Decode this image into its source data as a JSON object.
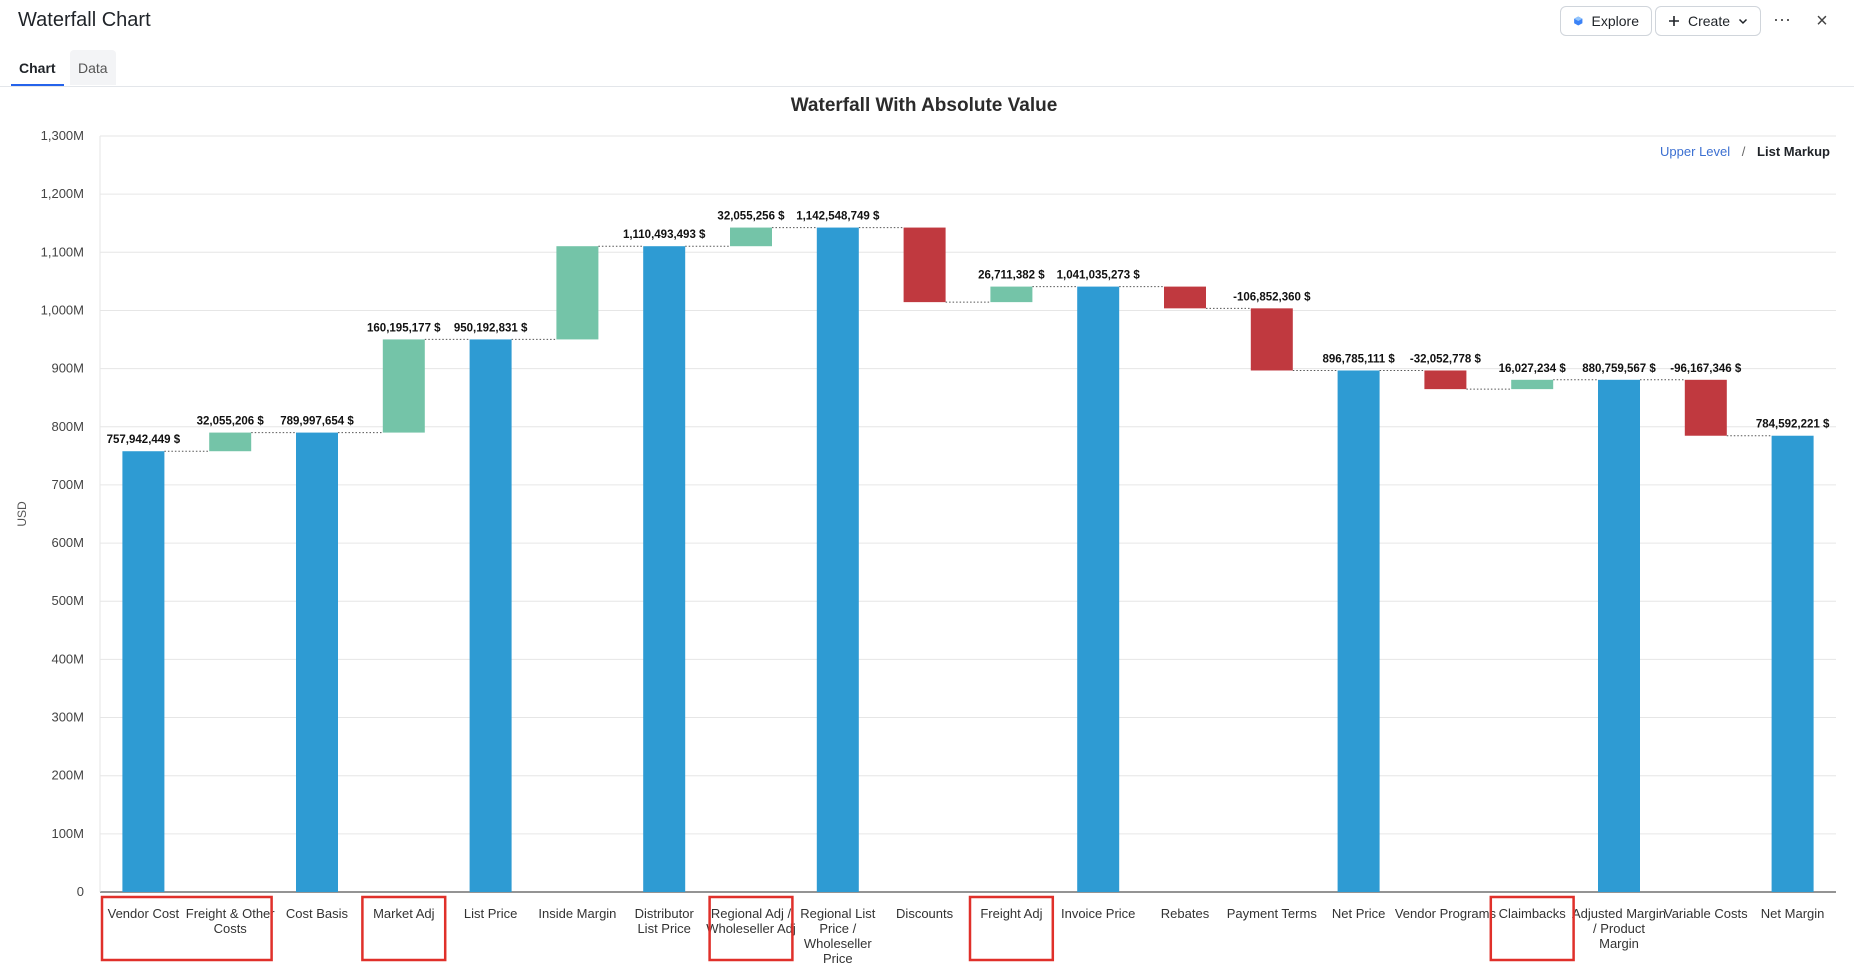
{
  "app": {
    "title": "Waterfall Chart"
  },
  "toolbar": {
    "explore_label": "Explore",
    "create_label": "Create",
    "more_label": "···",
    "close_label": "×"
  },
  "tabs": [
    {
      "label": "Chart",
      "active": true
    },
    {
      "label": "Data",
      "active": false
    }
  ],
  "breadcrumb": {
    "upper": "Upper Level",
    "separator": "/",
    "current": "List Markup"
  },
  "colors": {
    "total": "#2e9bd3",
    "increase": "#74c4a8",
    "decrease": "#c0393f",
    "highlight": "#e0302a",
    "brand": "#2563eb"
  },
  "chart_data": {
    "type": "waterfall",
    "title": "Waterfall With Absolute Value",
    "ylabel": "USD",
    "xlabel": "",
    "ylim": [
      0,
      1300000000
    ],
    "yticks": [
      0,
      100000000,
      200000000,
      300000000,
      400000000,
      500000000,
      600000000,
      700000000,
      800000000,
      900000000,
      1000000000,
      1100000000,
      1200000000,
      1300000000
    ],
    "ytick_labels": [
      "0",
      "100M",
      "200M",
      "300M",
      "400M",
      "500M",
      "600M",
      "700M",
      "800M",
      "900M",
      "1,000M",
      "1,100M",
      "1,200M",
      "1,300M"
    ],
    "grid": true,
    "bars": [
      {
        "category": "Vendor Cost",
        "kind": "total",
        "value": 757942449,
        "label": "757,942,449 $",
        "highlight": true
      },
      {
        "category": "Freight & Other Costs",
        "kind": "increase",
        "value": 32055206,
        "label": "32,055,206 $",
        "highlight": true
      },
      {
        "category": "Cost Basis",
        "kind": "total",
        "value": 789997654,
        "label": "789,997,654 $",
        "highlight": false
      },
      {
        "category": "Market Adj",
        "kind": "increase",
        "value": 160195177,
        "label": "160,195,177 $",
        "highlight": true
      },
      {
        "category": "List Price",
        "kind": "total",
        "value": 950192831,
        "label": "950,192,831 $",
        "highlight": false
      },
      {
        "category": "Inside Margin",
        "kind": "increase",
        "value": 160300662,
        "label": "",
        "highlight": false
      },
      {
        "category": "Distributor List Price",
        "kind": "total",
        "value": 1110493493,
        "label": "1,110,493,493 $",
        "highlight": false
      },
      {
        "category": "Regional Adj / Wholeseller Adj",
        "kind": "increase",
        "value": 32055256,
        "label": "32,055,256 $",
        "highlight": true
      },
      {
        "category": "Regional List Price / Wholeseller Price",
        "kind": "total",
        "value": 1142548749,
        "label": "1,142,548,749 $",
        "highlight": false
      },
      {
        "category": "Discounts",
        "kind": "decrease",
        "value": -128224858,
        "label": "",
        "highlight": false
      },
      {
        "category": "Freight Adj",
        "kind": "increase",
        "value": 26711382,
        "label": "26,711,382 $",
        "highlight": true
      },
      {
        "category": "Invoice Price",
        "kind": "total",
        "value": 1041035273,
        "label": "1,041,035,273 $",
        "highlight": false
      },
      {
        "category": "Rebates",
        "kind": "decrease",
        "value": -37397802,
        "label": "",
        "highlight": false
      },
      {
        "category": "Payment Terms",
        "kind": "decrease",
        "value": -106852360,
        "label": "-106,852,360 $",
        "highlight": false
      },
      {
        "category": "Net Price",
        "kind": "total",
        "value": 896785111,
        "label": "896,785,111 $",
        "highlight": false
      },
      {
        "category": "Vendor Programs",
        "kind": "decrease",
        "value": -32052778,
        "label": "-32,052,778 $",
        "highlight": false
      },
      {
        "category": "Claimbacks",
        "kind": "increase",
        "value": 16027234,
        "label": "16,027,234 $",
        "highlight": true
      },
      {
        "category": "Adjusted Margin / Product Margin",
        "kind": "total",
        "value": 880759567,
        "label": "880,759,567 $",
        "highlight": false
      },
      {
        "category": "Variable Costs",
        "kind": "decrease",
        "value": -96167346,
        "label": "-96,167,346 $",
        "highlight": false
      },
      {
        "category": "Net Margin",
        "kind": "total",
        "value": 784592221,
        "label": "784,592,221 $",
        "highlight": false
      }
    ]
  }
}
